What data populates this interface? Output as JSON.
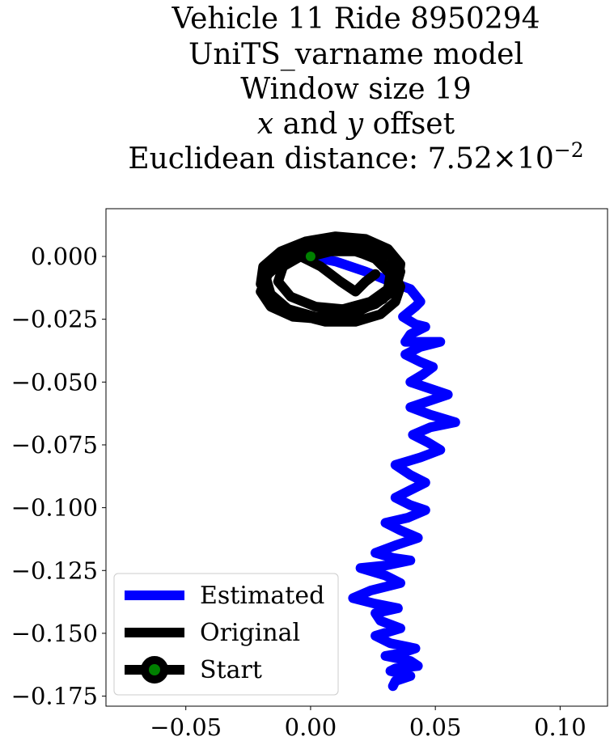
{
  "chart_data": {
    "type": "line",
    "title_lines": [
      "Vehicle 11 Ride 8950294",
      "UniTS_varname model",
      "Window size 19"
    ],
    "title_offset_line": {
      "x_var": "x",
      "and": " and ",
      "y_var": "y",
      "rest": " offset"
    },
    "title_distance": {
      "prefix": "Euclidean distance: ",
      "mantissa": "7.52",
      "times": "×",
      "base": "10",
      "exponent": "−2"
    },
    "xlim": [
      -0.082,
      0.119
    ],
    "ylim": [
      -0.179,
      0.019
    ],
    "xticks": [
      {
        "value": -0.05,
        "label": "−0.05"
      },
      {
        "value": 0.0,
        "label": "0.00"
      },
      {
        "value": 0.05,
        "label": "0.05"
      },
      {
        "value": 0.1,
        "label": "0.10"
      }
    ],
    "yticks": [
      {
        "value": 0.0,
        "label": "0.000"
      },
      {
        "value": -0.025,
        "label": "−0.025"
      },
      {
        "value": -0.05,
        "label": "−0.050"
      },
      {
        "value": -0.075,
        "label": "−0.075"
      },
      {
        "value": -0.1,
        "label": "−0.100"
      },
      {
        "value": -0.125,
        "label": "−0.125"
      },
      {
        "value": -0.15,
        "label": "−0.150"
      },
      {
        "value": -0.175,
        "label": "−0.175"
      }
    ],
    "grid": false,
    "legend_position": "lower-left",
    "series": [
      {
        "name": "Estimated",
        "color": "#0000ff",
        "x": [
          0.0,
          0.01,
          0.022,
          0.032,
          0.04,
          0.044,
          0.042,
          0.037,
          0.042,
          0.046,
          0.04,
          0.038,
          0.044,
          0.052,
          0.044,
          0.038,
          0.044,
          0.049,
          0.045,
          0.04,
          0.046,
          0.055,
          0.046,
          0.04,
          0.048,
          0.058,
          0.048,
          0.041,
          0.047,
          0.052,
          0.044,
          0.034,
          0.04,
          0.046,
          0.04,
          0.034,
          0.04,
          0.046,
          0.039,
          0.03,
          0.036,
          0.043,
          0.034,
          0.026,
          0.033,
          0.04,
          0.03,
          0.02,
          0.03,
          0.036,
          0.024,
          0.017,
          0.025,
          0.035,
          0.026,
          0.028,
          0.036,
          0.026,
          0.032,
          0.042,
          0.036,
          0.03,
          0.04,
          0.043,
          0.034,
          0.032,
          0.04,
          0.034,
          0.033
        ],
        "y": [
          0.0,
          -0.002,
          -0.006,
          -0.01,
          -0.013,
          -0.018,
          -0.02,
          -0.024,
          -0.027,
          -0.028,
          -0.031,
          -0.034,
          -0.034,
          -0.034,
          -0.036,
          -0.039,
          -0.042,
          -0.044,
          -0.047,
          -0.05,
          -0.052,
          -0.055,
          -0.058,
          -0.06,
          -0.063,
          -0.066,
          -0.068,
          -0.071,
          -0.074,
          -0.077,
          -0.08,
          -0.083,
          -0.087,
          -0.09,
          -0.093,
          -0.096,
          -0.099,
          -0.101,
          -0.104,
          -0.106,
          -0.109,
          -0.112,
          -0.115,
          -0.118,
          -0.12,
          -0.121,
          -0.123,
          -0.124,
          -0.127,
          -0.13,
          -0.133,
          -0.136,
          -0.138,
          -0.14,
          -0.142,
          -0.145,
          -0.148,
          -0.151,
          -0.154,
          -0.156,
          -0.158,
          -0.159,
          -0.161,
          -0.163,
          -0.164,
          -0.165,
          -0.167,
          -0.169,
          -0.171
        ]
      },
      {
        "name": "Original",
        "color": "#000000",
        "x": [
          0.0,
          0.008,
          0.018,
          0.027,
          0.033,
          0.036,
          0.034,
          0.028,
          0.018,
          0.006,
          -0.006,
          -0.015,
          -0.02,
          -0.019,
          -0.012,
          -0.002,
          0.01,
          0.022,
          0.031,
          0.036,
          0.035,
          0.029,
          0.019,
          0.006,
          -0.007,
          -0.016,
          -0.02,
          -0.017,
          -0.01,
          0.001,
          0.013,
          0.024,
          0.032,
          0.036,
          0.034,
          0.026,
          0.014,
          0.002,
          -0.009,
          -0.016,
          -0.018,
          -0.014,
          -0.006,
          0.005,
          0.016,
          0.026,
          0.032,
          0.031,
          0.024,
          0.013,
          0.002,
          -0.008,
          -0.013,
          -0.011,
          -0.004,
          0.004,
          0.012,
          0.018,
          0.022,
          0.026
        ],
        "y": [
          0.0,
          0.002,
          0.002,
          -0.001,
          -0.006,
          -0.012,
          -0.018,
          -0.023,
          -0.026,
          -0.026,
          -0.023,
          -0.018,
          -0.011,
          -0.004,
          0.002,
          0.006,
          0.008,
          0.007,
          0.003,
          -0.003,
          -0.01,
          -0.017,
          -0.022,
          -0.025,
          -0.024,
          -0.02,
          -0.014,
          -0.007,
          -0.001,
          0.004,
          0.006,
          0.004,
          0.0,
          -0.006,
          -0.013,
          -0.019,
          -0.023,
          -0.024,
          -0.021,
          -0.015,
          -0.008,
          -0.002,
          0.003,
          0.005,
          0.003,
          -0.001,
          -0.007,
          -0.013,
          -0.018,
          -0.021,
          -0.02,
          -0.016,
          -0.01,
          -0.004,
          0.0,
          -0.004,
          -0.01,
          -0.014,
          -0.01,
          -0.007
        ]
      }
    ],
    "start_point": {
      "name": "Start",
      "x": 0.0,
      "y": 0.0,
      "marker_color": "#008000",
      "edge_color": "#000000"
    }
  }
}
